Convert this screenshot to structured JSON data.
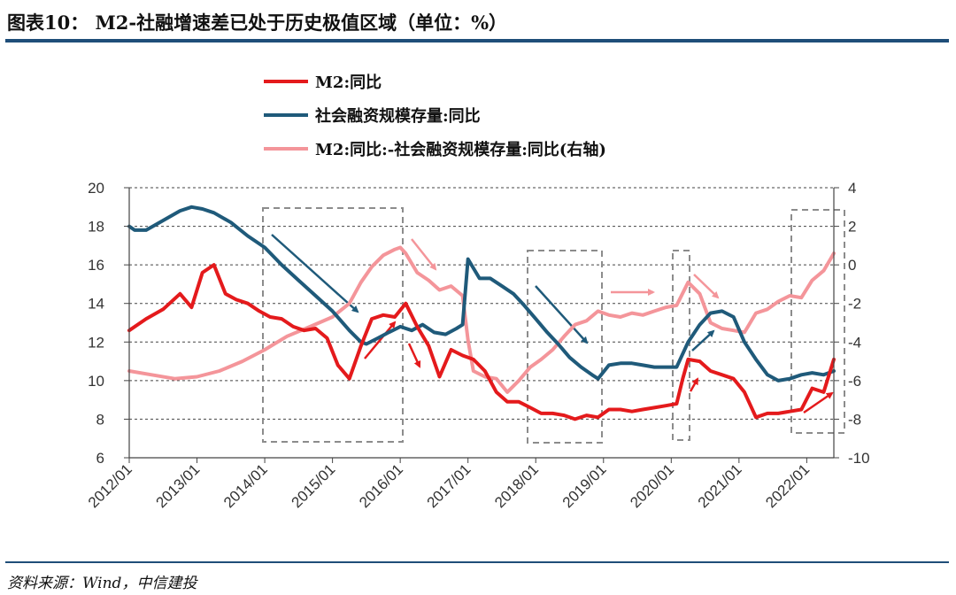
{
  "header": {
    "title": "图表10： M2-社融增速差已处于历史极值区域（单位：%）"
  },
  "footer": {
    "source": "资料来源：Wind，中信建投"
  },
  "colors": {
    "m2": "#e41a1c",
    "tsf": "#1f5a7a",
    "diff": "#f4959a",
    "rule": "#1f4e79",
    "box": "#8c8c8c",
    "grid": "#444444"
  },
  "chart_data": {
    "type": "line",
    "x_tick_labels": [
      "2012/01",
      "2013/01",
      "2014/01",
      "2015/01",
      "2016/01",
      "2017/01",
      "2018/01",
      "2019/01",
      "2020/01",
      "2021/01",
      "2022/01"
    ],
    "left_axis": {
      "ticks": [
        "20",
        "18",
        "16",
        "14",
        "12",
        "10",
        "8",
        "6"
      ],
      "ylim": [
        6,
        20
      ]
    },
    "right_axis": {
      "ticks": [
        "4",
        "2",
        "0",
        "-2",
        "-4",
        "-6",
        "-8",
        "-10"
      ],
      "ylim": [
        -10,
        4
      ]
    },
    "grid": "horizontal dashed",
    "legend_position": "top",
    "series": [
      {
        "name": "M2:同比",
        "axis": "left",
        "x": [
          2012.0,
          2012.25,
          2012.5,
          2012.75,
          2012.92,
          2013.08,
          2013.25,
          2013.42,
          2013.58,
          2013.75,
          2013.92,
          2014.08,
          2014.25,
          2014.42,
          2014.58,
          2014.75,
          2014.92,
          2015.08,
          2015.25,
          2015.42,
          2015.58,
          2015.75,
          2015.92,
          2016.08,
          2016.25,
          2016.42,
          2016.58,
          2016.75,
          2016.92,
          2017.08,
          2017.25,
          2017.42,
          2017.58,
          2017.75,
          2017.92,
          2018.08,
          2018.25,
          2018.42,
          2018.58,
          2018.75,
          2018.92,
          2019.08,
          2019.25,
          2019.42,
          2019.58,
          2019.75,
          2019.92,
          2020.08,
          2020.17,
          2020.25,
          2020.42,
          2020.58,
          2020.75,
          2020.92,
          2021.08,
          2021.25,
          2021.42,
          2021.58,
          2021.75,
          2021.92,
          2022.08,
          2022.25,
          2022.4
        ],
        "values": [
          12.6,
          13.2,
          13.7,
          14.5,
          13.8,
          15.6,
          16.0,
          14.5,
          14.2,
          14.0,
          13.6,
          13.3,
          13.2,
          12.8,
          12.6,
          12.7,
          12.2,
          10.8,
          10.1,
          11.8,
          13.2,
          13.4,
          13.3,
          14.0,
          12.8,
          11.8,
          10.2,
          11.6,
          11.3,
          11.1,
          10.5,
          9.4,
          8.9,
          8.9,
          8.6,
          8.3,
          8.3,
          8.2,
          8.0,
          8.2,
          8.1,
          8.5,
          8.5,
          8.4,
          8.5,
          8.6,
          8.7,
          8.8,
          10.1,
          11.1,
          11.0,
          10.5,
          10.3,
          10.1,
          9.4,
          8.1,
          8.3,
          8.3,
          8.4,
          8.5,
          9.6,
          9.4,
          11.1
        ]
      },
      {
        "name": "社会融资规模存量:同比",
        "axis": "left",
        "x": [
          2012.0,
          2012.08,
          2012.25,
          2012.5,
          2012.75,
          2012.92,
          2013.08,
          2013.25,
          2013.5,
          2013.75,
          2014.0,
          2014.25,
          2014.5,
          2014.75,
          2015.0,
          2015.25,
          2015.42,
          2015.5,
          2015.67,
          2015.83,
          2016.0,
          2016.17,
          2016.33,
          2016.5,
          2016.67,
          2016.83,
          2016.92,
          2017.0,
          2017.17,
          2017.33,
          2017.5,
          2017.67,
          2017.83,
          2018.0,
          2018.17,
          2018.33,
          2018.5,
          2018.67,
          2018.83,
          2018.92,
          2019.08,
          2019.25,
          2019.42,
          2019.58,
          2019.75,
          2019.92,
          2020.08,
          2020.25,
          2020.42,
          2020.58,
          2020.75,
          2020.92,
          2021.08,
          2021.25,
          2021.42,
          2021.58,
          2021.75,
          2021.92,
          2022.08,
          2022.25,
          2022.4
        ],
        "values": [
          18.0,
          17.8,
          17.8,
          18.3,
          18.8,
          19.0,
          18.9,
          18.7,
          18.2,
          17.5,
          16.9,
          16.0,
          15.2,
          14.4,
          13.6,
          12.6,
          12.0,
          11.9,
          12.2,
          12.5,
          12.8,
          12.6,
          12.9,
          12.5,
          12.4,
          12.7,
          12.9,
          16.3,
          15.3,
          15.3,
          14.9,
          14.5,
          13.9,
          13.2,
          12.5,
          11.9,
          11.2,
          10.7,
          10.3,
          10.1,
          10.8,
          10.9,
          10.9,
          10.8,
          10.7,
          10.7,
          10.7,
          12.0,
          12.9,
          13.5,
          13.6,
          13.3,
          12.0,
          11.1,
          10.3,
          10.0,
          10.1,
          10.3,
          10.4,
          10.3,
          10.5
        ]
      },
      {
        "name": "M2:同比:-社会融资规模存量:同比(右轴)",
        "axis": "right",
        "x": [
          2012.0,
          2012.33,
          2012.67,
          2013.0,
          2013.33,
          2013.67,
          2014.0,
          2014.33,
          2014.67,
          2015.0,
          2015.25,
          2015.42,
          2015.58,
          2015.75,
          2015.92,
          2016.0,
          2016.08,
          2016.25,
          2016.42,
          2016.58,
          2016.75,
          2016.92,
          2017.0,
          2017.08,
          2017.25,
          2017.42,
          2017.58,
          2017.75,
          2017.92,
          2018.08,
          2018.25,
          2018.42,
          2018.58,
          2018.75,
          2018.92,
          2019.08,
          2019.25,
          2019.42,
          2019.58,
          2019.75,
          2019.92,
          2020.08,
          2020.25,
          2020.42,
          2020.58,
          2020.75,
          2020.92,
          2021.08,
          2021.25,
          2021.42,
          2021.58,
          2021.75,
          2021.92,
          2022.08,
          2022.25,
          2022.4
        ],
        "values": [
          -5.5,
          -5.7,
          -5.9,
          -5.8,
          -5.5,
          -5.0,
          -4.4,
          -3.7,
          -3.2,
          -2.7,
          -2.0,
          -0.9,
          -0.1,
          0.5,
          0.8,
          0.9,
          0.6,
          -0.4,
          -0.8,
          -1.3,
          -1.1,
          -1.6,
          -3.9,
          -5.5,
          -5.8,
          -5.9,
          -6.6,
          -6.0,
          -5.3,
          -4.9,
          -4.4,
          -3.7,
          -3.1,
          -2.9,
          -2.4,
          -2.6,
          -2.7,
          -2.5,
          -2.6,
          -2.4,
          -2.2,
          -2.1,
          -0.9,
          -1.5,
          -3.0,
          -3.3,
          -3.4,
          -3.5,
          -2.5,
          -2.3,
          -1.9,
          -1.6,
          -1.7,
          -0.8,
          -0.3,
          0.6
        ]
      }
    ]
  }
}
